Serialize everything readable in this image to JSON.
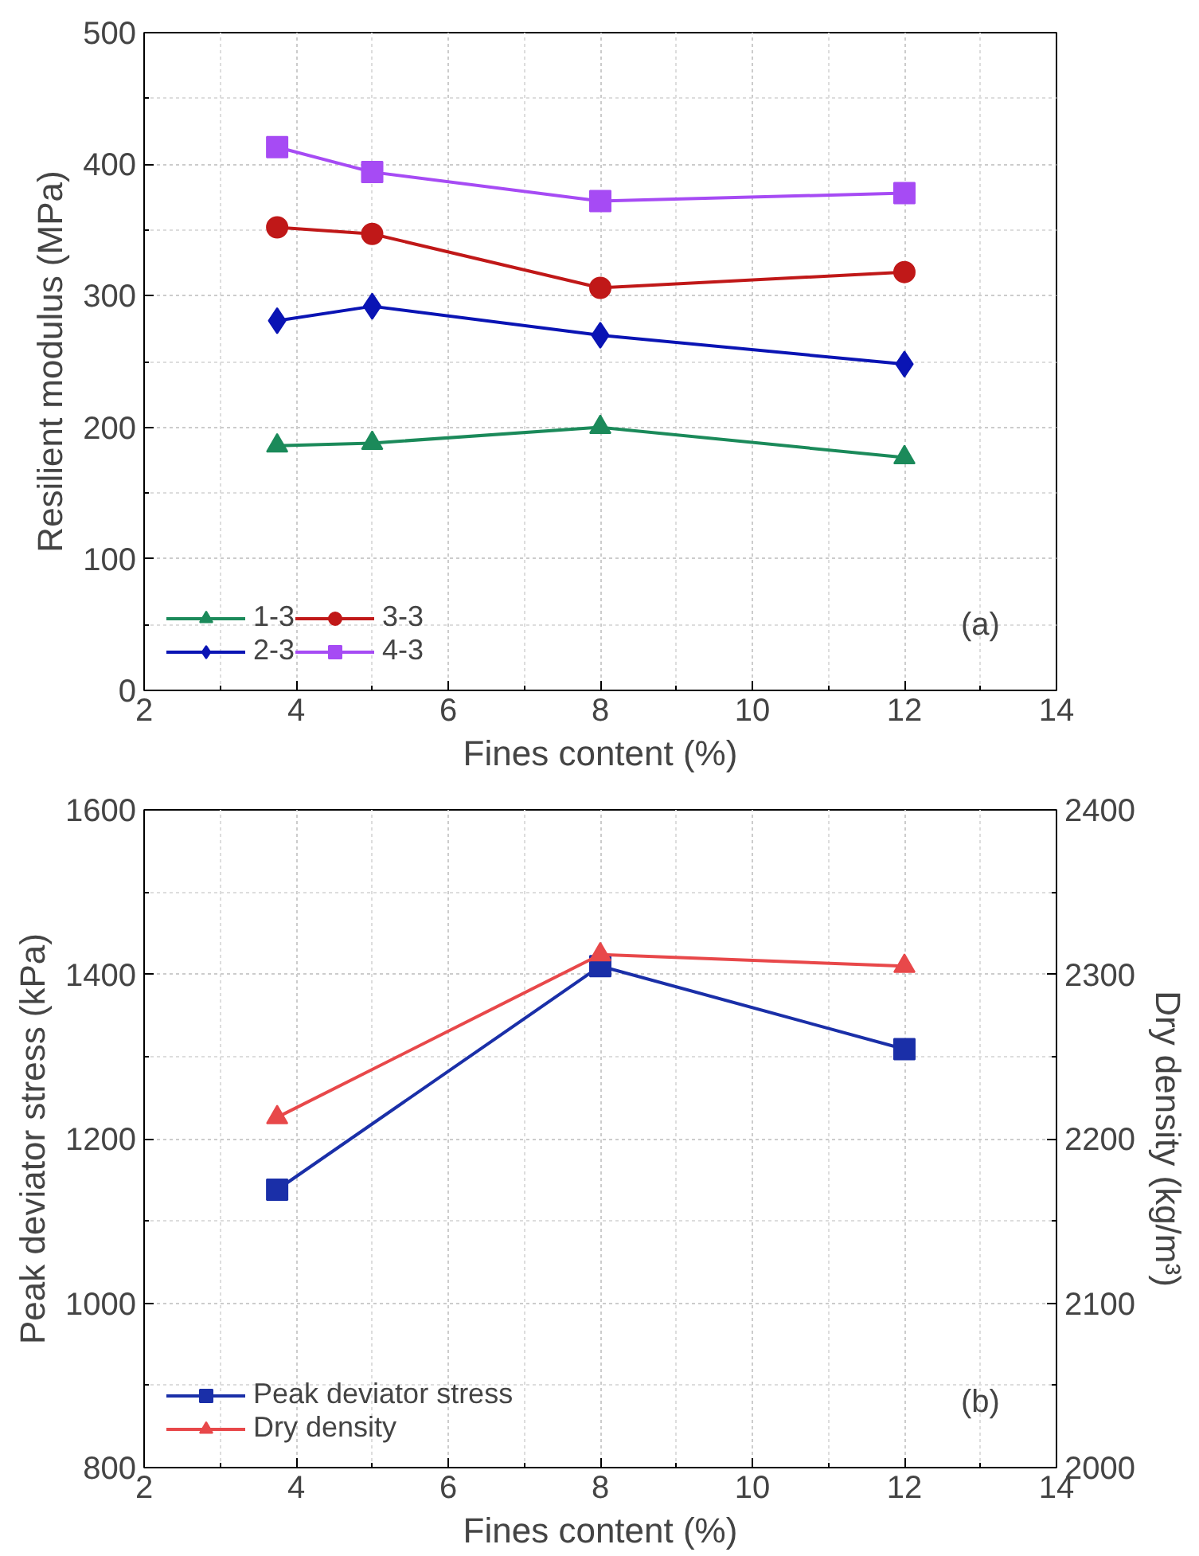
{
  "chart_data": [
    {
      "type": "line",
      "xlabel": "Fines content (%)",
      "ylabel": "Resilient modulus (MPa)",
      "x": [
        3.75,
        5,
        8,
        12
      ],
      "series": [
        {
          "name": "1-3",
          "color": "#1b8a5a",
          "marker": "triangle",
          "values": [
            186,
            188,
            200,
            177
          ]
        },
        {
          "name": "2-3",
          "color": "#0a14b4",
          "marker": "diamond",
          "values": [
            281,
            292,
            270,
            248
          ]
        },
        {
          "name": "3-3",
          "color": "#c01818",
          "marker": "circle",
          "values": [
            352,
            347,
            306,
            318
          ]
        },
        {
          "name": "4-3",
          "color": "#a64bf4",
          "marker": "square",
          "values": [
            413,
            394,
            372,
            378
          ]
        }
      ],
      "xlim": [
        2,
        14
      ],
      "xticks": [
        2,
        4,
        6,
        8,
        10,
        12,
        14
      ],
      "ylim": [
        0,
        500
      ],
      "yticks": [
        0,
        100,
        200,
        300,
        400,
        500
      ],
      "grid": true,
      "legend": "bottom left",
      "annotations": [
        "(a)"
      ]
    },
    {
      "type": "line",
      "xlabel": "Fines content (%)",
      "ylabel": "Peak deviator stress (kPa)",
      "y2label": "Dry density (kg/m³)",
      "x": [
        3.75,
        8,
        12
      ],
      "series": [
        {
          "name": "Peak deviator stress",
          "color": "#1a2fa8",
          "marker": "square",
          "values": [
            1138,
            1410,
            1309
          ]
        },
        {
          "name": "Dry density",
          "color": "#e8484a",
          "marker": "triangle",
          "axis": "y2",
          "values": [
            2213,
            2312,
            2305
          ]
        }
      ],
      "xlim": [
        2,
        14
      ],
      "xticks": [
        2,
        4,
        6,
        8,
        10,
        12,
        14
      ],
      "ylim": [
        800,
        1600
      ],
      "yticks": [
        800,
        1000,
        1200,
        1400,
        1600
      ],
      "y2lim": [
        2000,
        2400
      ],
      "y2ticks": [
        2000,
        2100,
        2200,
        2300,
        2400
      ],
      "grid": true,
      "legend": "bottom left",
      "annotations": [
        "(b)"
      ]
    }
  ]
}
